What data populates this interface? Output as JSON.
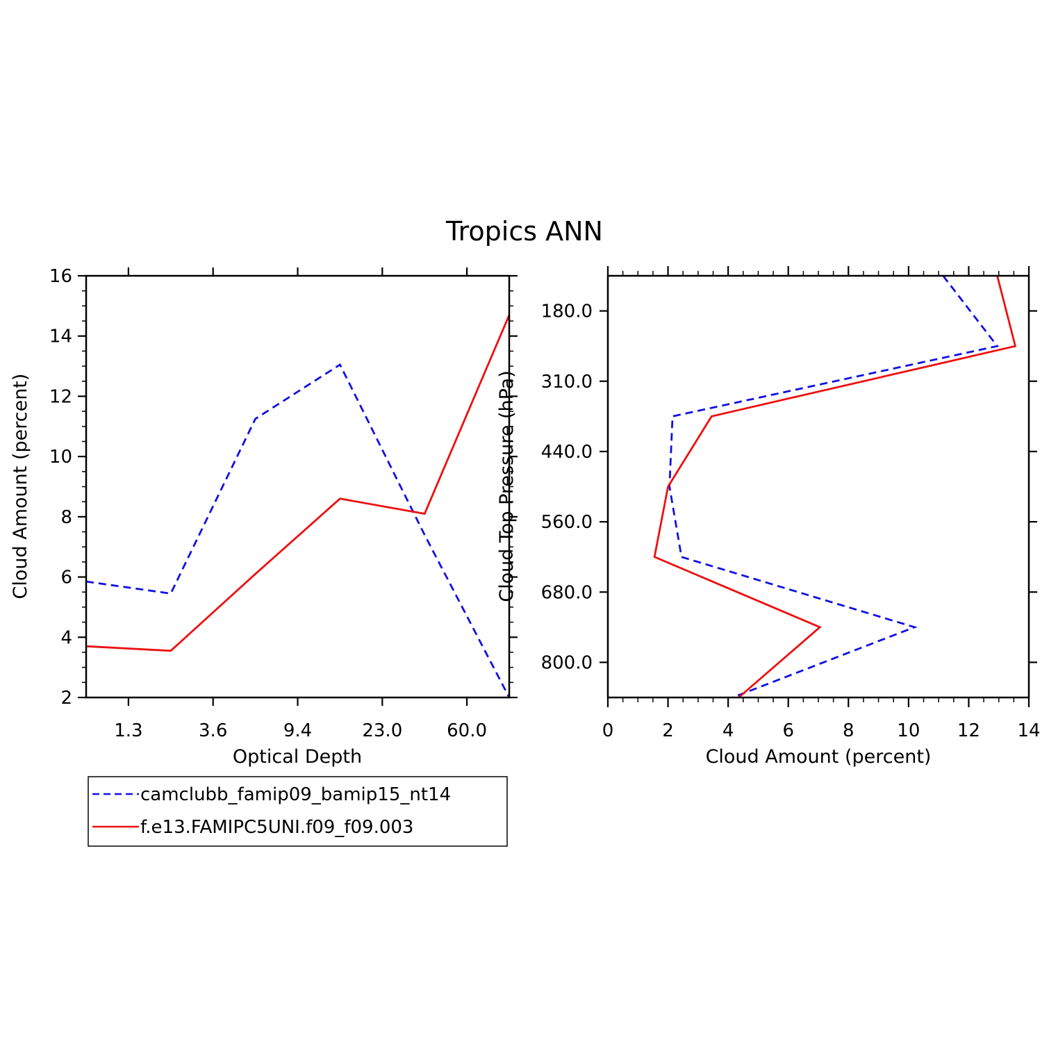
{
  "title": "Tropics ANN",
  "colors": {
    "series1": "#1010e6",
    "series2": "#ee1010",
    "axis": "#000000"
  },
  "legend": {
    "position": "bottom-left",
    "entries": [
      {
        "label": "camclubb_famip09_bamip15_nt14",
        "style": "dashed"
      },
      {
        "label": "f.e13.FAMIPC5UNI.f09_f09.003",
        "style": "solid"
      }
    ]
  },
  "chart_data": [
    {
      "type": "line",
      "name": "optical-depth",
      "xlabel": "Optical Depth",
      "ylabel": "Cloud Amount (percent)",
      "xlim": [
        0,
        5
      ],
      "ylim": [
        2,
        16
      ],
      "x_ticks": [
        {
          "pos": 0.5,
          "label": "1.3"
        },
        {
          "pos": 1.5,
          "label": "3.6"
        },
        {
          "pos": 2.5,
          "label": "9.4"
        },
        {
          "pos": 3.5,
          "label": "23.0"
        },
        {
          "pos": 4.5,
          "label": "60.0"
        }
      ],
      "y_ticks": [
        2,
        4,
        6,
        8,
        10,
        12,
        14,
        16
      ],
      "series": [
        {
          "name": "camclubb_famip09_bamip15_nt14",
          "x": [
            0,
            1,
            2,
            3,
            4,
            5
          ],
          "values": [
            5.85,
            5.45,
            11.25,
            13.05,
            7.4,
            2.0
          ]
        },
        {
          "name": "f.e13.FAMIPC5UNI.f09_f09.003",
          "x": [
            0,
            1,
            2,
            3,
            4,
            5
          ],
          "values": [
            3.7,
            3.55,
            6.1,
            8.6,
            8.1,
            14.7
          ]
        }
      ]
    },
    {
      "type": "line",
      "name": "cloud-top-pressure",
      "xlabel": "Cloud Amount (percent)",
      "ylabel": "Cloud Top Pressure (hPa)",
      "xlim": [
        0,
        14
      ],
      "ylim": [
        0,
        6
      ],
      "x_ticks": [
        0,
        2,
        4,
        6,
        8,
        10,
        12,
        14
      ],
      "y_ticks": [
        {
          "pos": 0.5,
          "label": "180.0"
        },
        {
          "pos": 1.5,
          "label": "310.0"
        },
        {
          "pos": 2.5,
          "label": "440.0"
        },
        {
          "pos": 3.5,
          "label": "560.0"
        },
        {
          "pos": 4.5,
          "label": "680.0"
        },
        {
          "pos": 5.5,
          "label": "800.0"
        }
      ],
      "series": [
        {
          "name": "camclubb_famip09_bamip15_nt14",
          "x": [
            11.15,
            12.95,
            2.15,
            2.05,
            2.45,
            10.2,
            4.15
          ],
          "y": [
            0,
            1,
            2,
            3,
            4,
            5,
            6
          ]
        },
        {
          "name": "f.e13.FAMIPC5UNI.f09_f09.003",
          "x": [
            12.95,
            13.55,
            3.45,
            2.0,
            1.55,
            7.05,
            4.35
          ],
          "y": [
            0,
            1,
            2,
            3,
            4,
            5,
            6
          ]
        }
      ]
    }
  ]
}
